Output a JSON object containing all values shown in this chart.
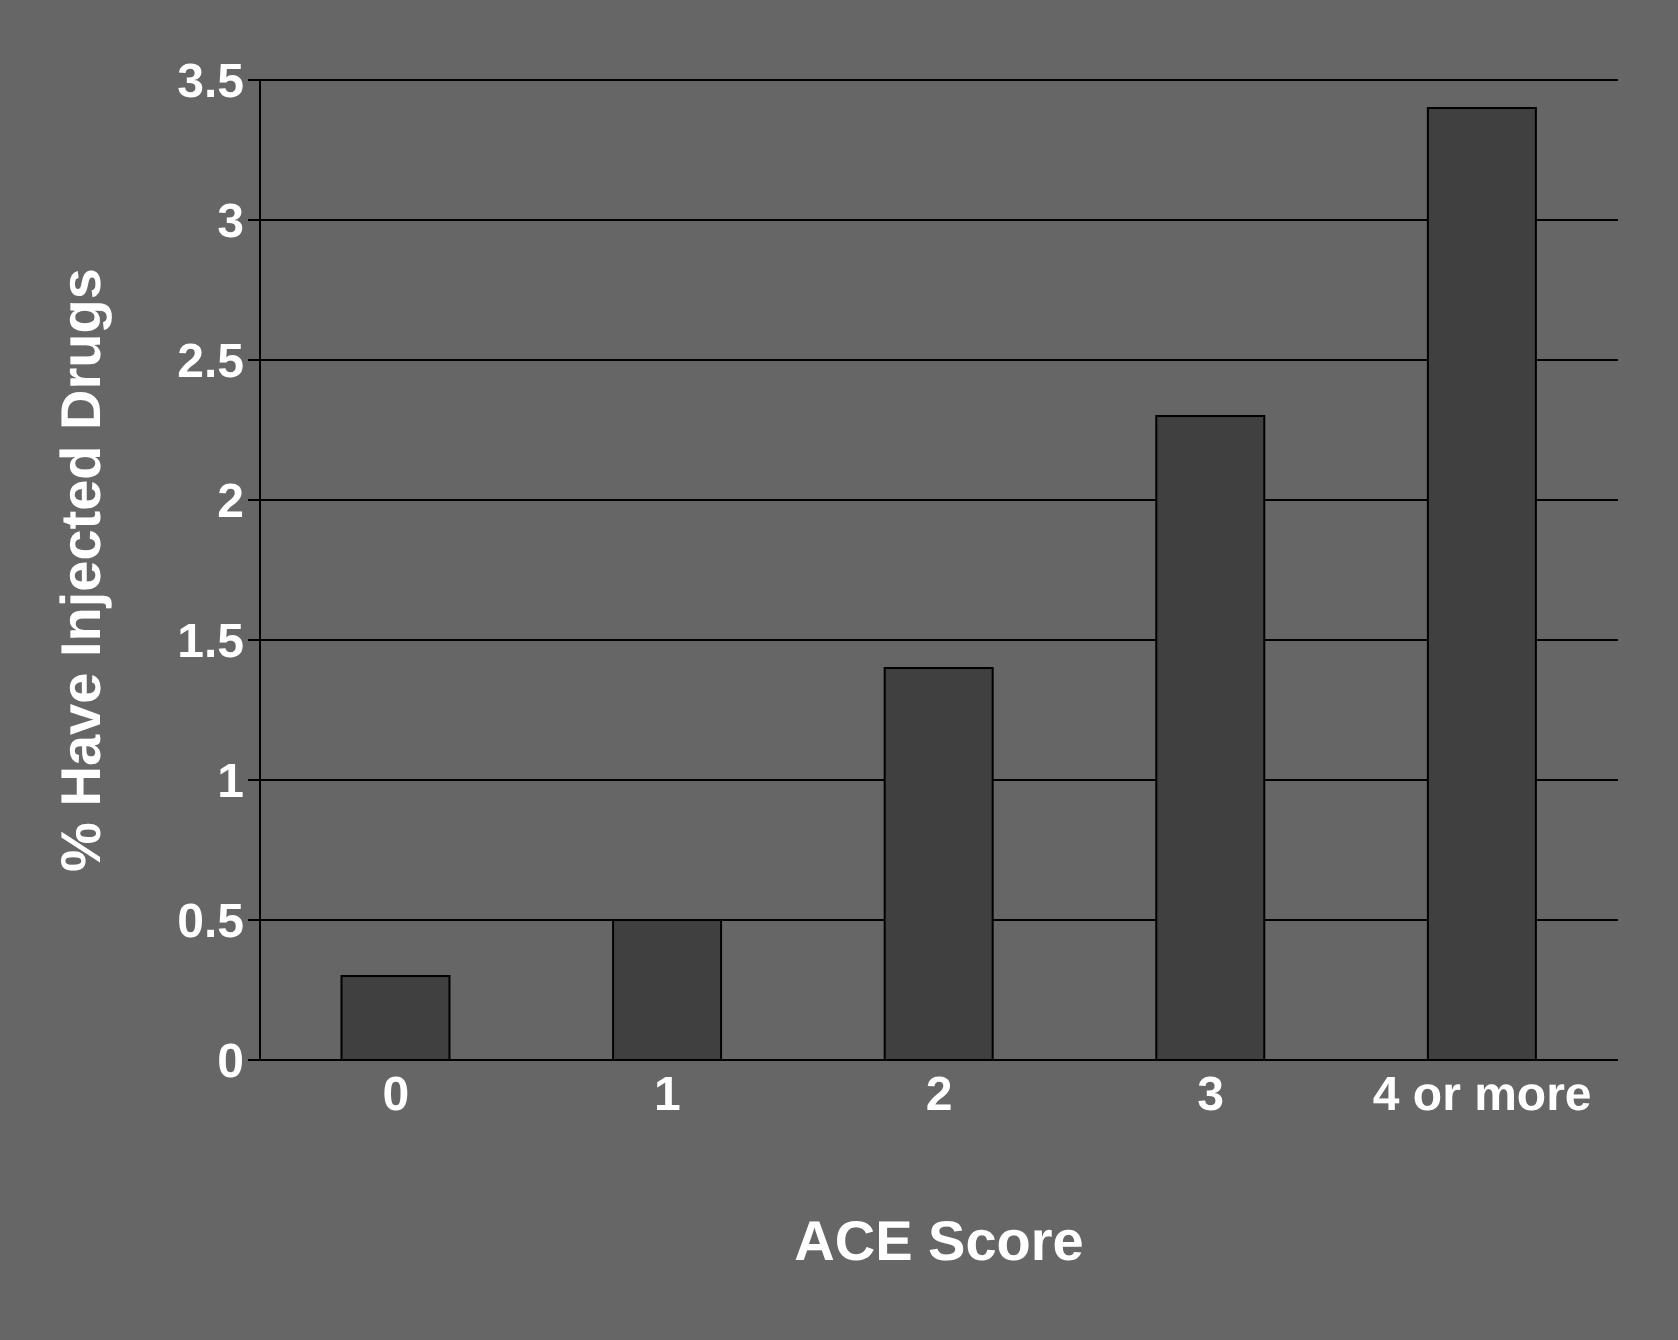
{
  "chart_data": {
    "type": "bar",
    "xlabel": "ACE Score",
    "ylabel": "% Have Injected Drugs",
    "categories": [
      "0",
      "1",
      "2",
      "3",
      "4 or more"
    ],
    "values": [
      0.3,
      0.5,
      1.4,
      2.3,
      3.4
    ],
    "color": "#404040",
    "ylim": [
      0,
      3.5
    ],
    "yticks": [
      0,
      0.5,
      1,
      1.5,
      2,
      2.5,
      3,
      3.5
    ],
    "grid": "y"
  }
}
